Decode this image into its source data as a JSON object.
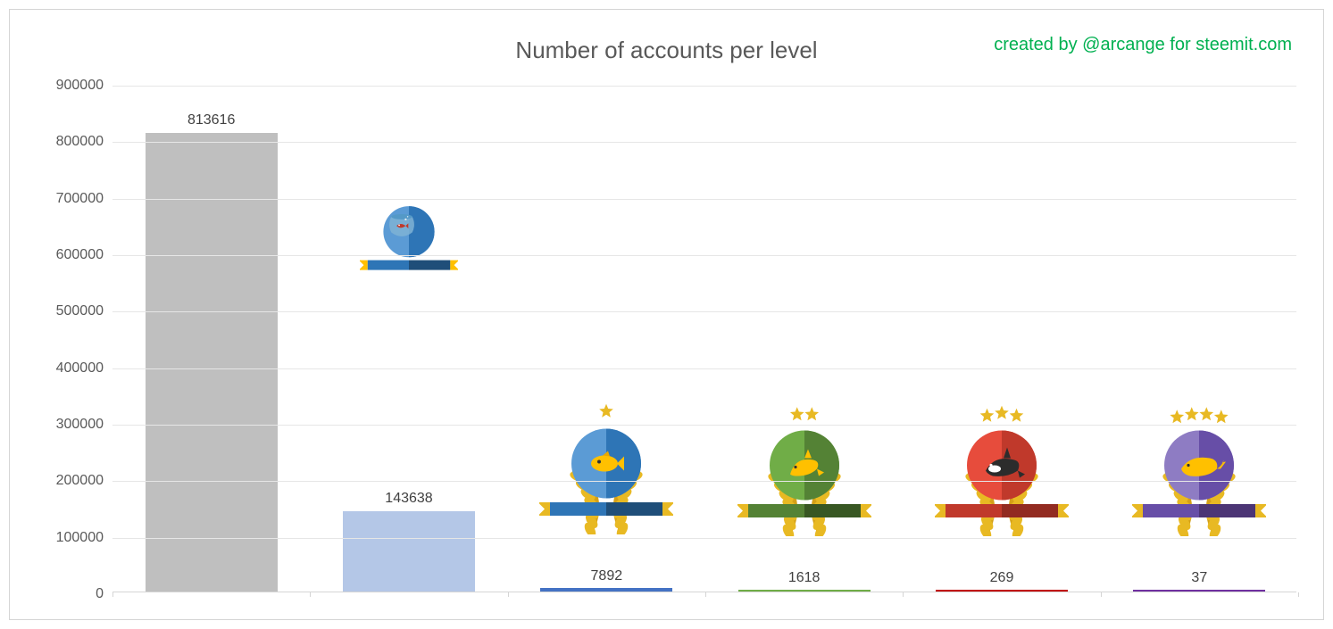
{
  "chart": {
    "title": "Number of accounts per level",
    "credit": "created by @arcange for steemit.com",
    "credit_color": "#00b050",
    "title_color": "#595959",
    "title_fontsize": 26,
    "credit_fontsize": 20,
    "background_color": "#ffffff",
    "border_color": "#d5d5d5",
    "grid_color": "#e6e6e6",
    "text_color": "#595959",
    "label_color": "#404040",
    "ylim": [
      0,
      900000
    ],
    "ytick_step": 100000,
    "yticks": [
      0,
      100000,
      200000,
      300000,
      400000,
      500000,
      600000,
      700000,
      800000,
      900000
    ],
    "bar_width_ratio": 0.67,
    "bars": [
      {
        "value": 813616,
        "color": "#bfbfbf",
        "small_bar": false,
        "underline_color": null,
        "label_offset_y": 25,
        "badge": {
          "type": "fishbone",
          "emblem_color_light": "#b0b0b0",
          "emblem_color_dark": "#909090",
          "ribbon_color_light": "#a0a0a0",
          "ribbon_color_dark": "#808080",
          "wreath": false,
          "stars": 0,
          "size": 110,
          "offset_y": 175
        }
      },
      {
        "value": 143638,
        "color": "#b4c7e7",
        "small_bar": false,
        "underline_color": null,
        "label_offset_y": 25,
        "badge": {
          "type": "fishbowl",
          "emblem_color_light": "#5b9bd5",
          "emblem_color_dark": "#2e75b6",
          "ribbon_color_light": "#2e75b6",
          "ribbon_color_dark": "#1f4e79",
          "accent_color": "#ffc000",
          "wreath": false,
          "stars": 0,
          "size": 110,
          "offset_y": 250
        }
      },
      {
        "value": 7892,
        "color": "#4472c4",
        "small_bar": true,
        "underline_color": "#4472c4",
        "label_offset_y": 24,
        "badge": {
          "type": "fish",
          "emblem_color_light": "#5b9bd5",
          "emblem_color_dark": "#2e75b6",
          "ribbon_color_light": "#2e75b6",
          "ribbon_color_dark": "#1f4e79",
          "wreath": true,
          "stars": 1,
          "size": 150,
          "offset_y": 55
        }
      },
      {
        "value": 1618,
        "color": "#70ad47",
        "small_bar": true,
        "underline_color": "#70ad47",
        "label_offset_y": 24,
        "badge": {
          "type": "dolphin",
          "emblem_color_light": "#70ad47",
          "emblem_color_dark": "#548235",
          "ribbon_color_light": "#548235",
          "ribbon_color_dark": "#385723",
          "wreath": true,
          "stars": 2,
          "size": 150,
          "offset_y": 55
        }
      },
      {
        "value": 269,
        "color": "#c00000",
        "small_bar": true,
        "underline_color": "#c00000",
        "label_offset_y": 24,
        "badge": {
          "type": "orca",
          "emblem_color_light": "#e74c3c",
          "emblem_color_dark": "#c0392b",
          "ribbon_color_light": "#c0392b",
          "ribbon_color_dark": "#922b21",
          "wreath": true,
          "stars": 3,
          "size": 150,
          "offset_y": 55
        }
      },
      {
        "value": 37,
        "color": "#7030a0",
        "small_bar": true,
        "underline_color": "#7030a0",
        "label_offset_y": 24,
        "badge": {
          "type": "whale",
          "emblem_color_light": "#8e7cc3",
          "emblem_color_dark": "#674ea7",
          "ribbon_color_light": "#674ea7",
          "ribbon_color_dark": "#4c3575",
          "wreath": true,
          "stars": 4,
          "size": 150,
          "offset_y": 55
        }
      }
    ]
  }
}
